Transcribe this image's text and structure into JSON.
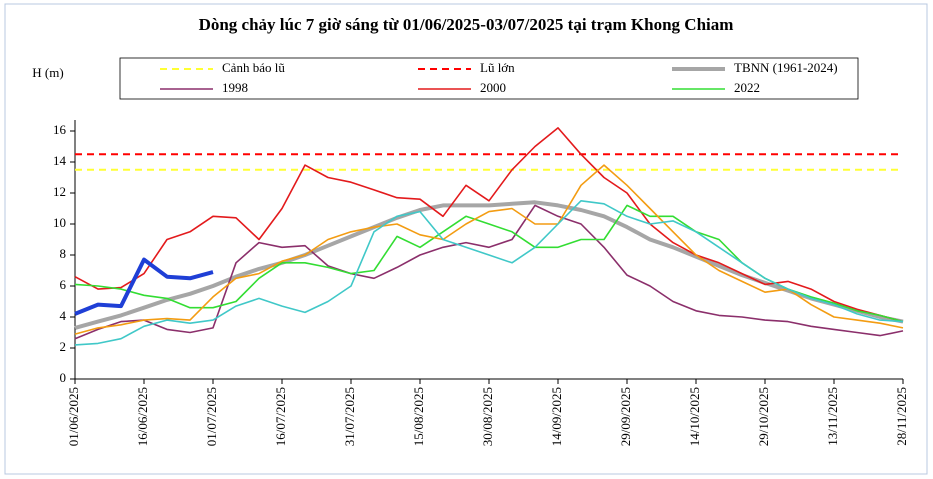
{
  "chart_data": {
    "type": "line",
    "title": "Dòng chảy lúc 7 giờ sáng từ 01/06/2025-03/07/2025 tại trạm Khong Chiam",
    "y_label": "H (m)",
    "x": [
      "2025-06-01",
      "2025-06-06",
      "2025-06-11",
      "2025-06-16",
      "2025-06-21",
      "2025-06-26",
      "2025-07-01",
      "2025-07-06",
      "2025-07-11",
      "2025-07-16",
      "2025-07-21",
      "2025-07-26",
      "2025-07-31",
      "2025-08-05",
      "2025-08-10",
      "2025-08-15",
      "2025-08-20",
      "2025-08-25",
      "2025-08-30",
      "2025-09-04",
      "2025-09-09",
      "2025-09-14",
      "2025-09-19",
      "2025-09-24",
      "2025-09-29",
      "2025-10-04",
      "2025-10-09",
      "2025-10-14",
      "2025-10-19",
      "2025-10-24",
      "2025-10-29",
      "2025-11-03",
      "2025-11-08",
      "2025-11-13",
      "2025-11-18",
      "2025-11-23",
      "2025-11-28"
    ],
    "xlim": [
      "2025-06-01",
      "2025-11-28"
    ],
    "xticks": [
      {
        "value": "2025-06-01",
        "label": "01/06/2025"
      },
      {
        "value": "2025-06-16",
        "label": "16/06/2025"
      },
      {
        "value": "2025-07-01",
        "label": "01/07/2025"
      },
      {
        "value": "2025-07-16",
        "label": "16/07/2025"
      },
      {
        "value": "2025-07-31",
        "label": "31/07/2025"
      },
      {
        "value": "2025-08-15",
        "label": "15/08/2025"
      },
      {
        "value": "2025-08-30",
        "label": "30/08/2025"
      },
      {
        "value": "2025-09-14",
        "label": "14/09/2025"
      },
      {
        "value": "2025-09-29",
        "label": "29/09/2025"
      },
      {
        "value": "2025-10-14",
        "label": "14/10/2025"
      },
      {
        "value": "2025-10-29",
        "label": "29/10/2025"
      },
      {
        "value": "2025-11-13",
        "label": "13/11/2025"
      },
      {
        "value": "2025-11-28",
        "label": "28/11/2025"
      }
    ],
    "ylim": [
      0,
      16
    ],
    "yticks": [
      0,
      2,
      4,
      6,
      8,
      10,
      12,
      14,
      16
    ],
    "grid": false,
    "series": [
      {
        "name": "Cảnh báo lũ",
        "color": "#ffff33",
        "style": "dashed",
        "values": [
          13.5,
          13.5,
          13.5,
          13.5,
          13.5,
          13.5,
          13.5,
          13.5,
          13.5,
          13.5,
          13.5,
          13.5,
          13.5,
          13.5,
          13.5,
          13.5,
          13.5,
          13.5,
          13.5,
          13.5,
          13.5,
          13.5,
          13.5,
          13.5,
          13.5,
          13.5,
          13.5,
          13.5,
          13.5,
          13.5,
          13.5,
          13.5,
          13.5,
          13.5,
          13.5,
          13.5,
          13.5
        ]
      },
      {
        "name": "Lũ lớn",
        "color": "#ff0000",
        "style": "dashed",
        "values": [
          14.5,
          14.5,
          14.5,
          14.5,
          14.5,
          14.5,
          14.5,
          14.5,
          14.5,
          14.5,
          14.5,
          14.5,
          14.5,
          14.5,
          14.5,
          14.5,
          14.5,
          14.5,
          14.5,
          14.5,
          14.5,
          14.5,
          14.5,
          14.5,
          14.5,
          14.5,
          14.5,
          14.5,
          14.5,
          14.5,
          14.5,
          14.5,
          14.5,
          14.5,
          14.5,
          14.5,
          14.5
        ]
      },
      {
        "name": "TBNN (1961-2024)",
        "color": "#a6a6a6",
        "style": "thick",
        "values": [
          3.3,
          3.7,
          4.1,
          4.6,
          5.1,
          5.5,
          6.0,
          6.6,
          7.1,
          7.5,
          8.0,
          8.6,
          9.2,
          9.8,
          10.4,
          10.9,
          11.2,
          11.2,
          11.2,
          11.3,
          11.4,
          11.2,
          10.9,
          10.5,
          9.8,
          9.0,
          8.5,
          7.9,
          7.3,
          6.7,
          6.2,
          5.7,
          5.2,
          4.8,
          4.4,
          4.0,
          3.7
        ]
      },
      {
        "name": "1998",
        "color": "#8b2f6b",
        "style": "thin",
        "values": [
          2.6,
          3.2,
          3.7,
          3.8,
          3.2,
          3.0,
          3.3,
          7.5,
          8.8,
          8.5,
          8.6,
          7.3,
          6.8,
          6.5,
          7.2,
          8.0,
          8.5,
          8.8,
          8.5,
          9.0,
          11.2,
          10.5,
          10.0,
          8.5,
          6.7,
          6.0,
          5.0,
          4.4,
          4.1,
          4.0,
          3.8,
          3.7,
          3.4,
          3.2,
          3.0,
          2.8,
          3.1
        ]
      },
      {
        "name": "2000",
        "color": "#e31a1c",
        "style": "thin",
        "values": [
          6.6,
          5.8,
          5.9,
          6.8,
          9.0,
          9.5,
          10.5,
          10.4,
          9.0,
          11.0,
          13.8,
          13.0,
          12.7,
          12.2,
          11.7,
          11.6,
          10.5,
          12.5,
          11.5,
          13.5,
          15.0,
          16.2,
          14.5,
          13.0,
          12.0,
          10.0,
          8.8,
          8.0,
          7.5,
          6.8,
          6.1,
          6.3,
          5.8,
          5.0,
          4.5,
          4.1,
          3.7
        ]
      },
      {
        "name": "2022",
        "color": "#33dd33",
        "style": "thin",
        "values": [
          6.1,
          6.0,
          5.8,
          5.4,
          5.2,
          4.6,
          4.6,
          5.0,
          6.5,
          7.5,
          7.5,
          7.2,
          6.8,
          7.0,
          9.2,
          8.5,
          9.5,
          10.5,
          10.0,
          9.5,
          8.5,
          8.5,
          9.0,
          9.0,
          11.2,
          10.5,
          10.5,
          9.5,
          9.0,
          7.5,
          6.5,
          5.8,
          5.3,
          4.9,
          4.4,
          4.1,
          3.7
        ]
      },
      {
        "color": "#f39c12",
        "style": "thin",
        "values": [
          2.9,
          3.3,
          3.5,
          3.8,
          3.9,
          3.8,
          5.3,
          6.5,
          6.8,
          7.6,
          8.0,
          9.0,
          9.5,
          9.8,
          10.0,
          9.3,
          9.0,
          10.0,
          10.8,
          11.0,
          10.0,
          10.0,
          12.5,
          13.8,
          12.5,
          11.0,
          9.5,
          8.0,
          7.0,
          6.3,
          5.6,
          5.8,
          4.8,
          4.0,
          3.8,
          3.6,
          3.3
        ]
      },
      {
        "color": "#40c8c8",
        "style": "thin",
        "values": [
          2.2,
          2.3,
          2.6,
          3.4,
          3.8,
          3.6,
          3.8,
          4.7,
          5.2,
          4.7,
          4.3,
          5.0,
          6.0,
          9.5,
          10.5,
          10.8,
          9.0,
          8.5,
          8.0,
          7.5,
          8.5,
          10.0,
          11.5,
          11.3,
          10.5,
          10.0,
          10.2,
          9.5,
          8.5,
          7.5,
          6.5,
          5.8,
          5.2,
          4.8,
          4.2,
          3.8,
          3.7
        ]
      },
      {
        "color": "#1f3fd6",
        "style": "thick",
        "values": [
          4.2,
          4.8,
          4.7,
          7.7,
          6.6,
          6.5,
          6.9,
          null,
          null,
          null,
          null,
          null,
          null,
          null,
          null,
          null,
          null,
          null,
          null,
          null,
          null,
          null,
          null,
          null,
          null,
          null,
          null,
          null,
          null,
          null,
          null,
          null,
          null,
          null,
          null,
          null,
          null
        ]
      }
    ]
  }
}
